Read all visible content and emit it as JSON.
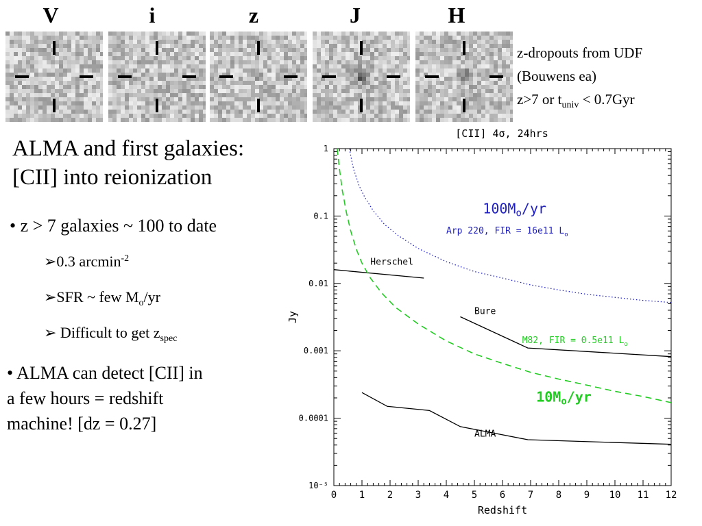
{
  "bands": [
    "V",
    "i",
    "z",
    "J",
    "H"
  ],
  "note": {
    "line1": "z-dropouts from UDF",
    "line2": "(Bouwens ea)",
    "line3_main": "z>7 or t",
    "line3_sub": "univ",
    "line3_tail": " < 0.7Gyr"
  },
  "title": {
    "line1": "ALMA and first galaxies:",
    "line2": "[CII] into reionization"
  },
  "bullets": {
    "b1": "• z > 7 galaxies ~ 100 to date",
    "s1_main": "➢0.3 arcmin",
    "s1_sup": "-2",
    "s2_main": "➢SFR ~ few M",
    "s2_sub": "o",
    "s2_tail": "/yr",
    "s3_main": "➢ Difficult to get z",
    "s3_sub": "spec",
    "p_line1": "• ALMA can detect [CII] in",
    "p_line2": "a few hours =  redshift",
    "p_line3": "machine! [dz = 0.27]"
  },
  "chart_data": {
    "type": "line",
    "title": "[CII] 4σ, 24hrs",
    "xlabel": "Redshift",
    "ylabel": "Jy",
    "xlim": [
      0,
      12
    ],
    "ylim_log10": [
      -5,
      0
    ],
    "x_ticks": [
      "0",
      "1",
      "2",
      "3",
      "4",
      "5",
      "6",
      "7",
      "8",
      "9",
      "10",
      "11",
      "12"
    ],
    "y_ticks": [
      "1",
      "0.1",
      "0.01",
      "0.001",
      "0.0001",
      "10⁻⁵"
    ],
    "series": [
      {
        "name": "Herschel",
        "style": "solid",
        "color": "#000000",
        "x": [
          0,
          3.2
        ],
        "y": [
          0.016,
          0.012
        ]
      },
      {
        "name": "Bure",
        "style": "solid",
        "color": "#000000",
        "x": [
          4.5,
          6.9,
          12
        ],
        "y": [
          0.0032,
          0.0011,
          0.00082
        ]
      },
      {
        "name": "ALMA",
        "style": "solid",
        "color": "#000000",
        "x": [
          1,
          1.9,
          3.4,
          4.5,
          6.9,
          12
        ],
        "y": [
          0.00024,
          0.00015,
          0.00013,
          7.5e-05,
          4.8e-05,
          4.1e-05
        ]
      },
      {
        "name": "Arp 220, FIR = 16e11 Lo",
        "style": "dotted",
        "color": "#2020c0",
        "x": [
          0.55,
          0.7,
          0.9,
          1.1,
          1.4,
          1.8,
          2.3,
          3,
          4,
          5,
          6,
          7,
          8,
          9,
          10,
          11,
          12
        ],
        "y": [
          1,
          0.5,
          0.28,
          0.19,
          0.12,
          0.075,
          0.051,
          0.033,
          0.021,
          0.015,
          0.012,
          0.0095,
          0.008,
          0.0069,
          0.0062,
          0.0056,
          0.0052
        ]
      },
      {
        "name": "M82, FIR = 0.5e11 Lo",
        "style": "dashed",
        "color": "#22cc22",
        "x": [
          0.12,
          0.2,
          0.3,
          0.45,
          0.6,
          0.8,
          1,
          1.3,
          1.7,
          2.2,
          3,
          4,
          5,
          6,
          7,
          8,
          9,
          10,
          11,
          12
        ],
        "y": [
          1,
          0.5,
          0.24,
          0.11,
          0.06,
          0.032,
          0.02,
          0.012,
          0.0072,
          0.0044,
          0.0025,
          0.0014,
          0.0009,
          0.00065,
          0.00048,
          0.00038,
          0.00031,
          0.00025,
          0.00021,
          0.00017
        ]
      }
    ],
    "annotations": [
      {
        "text": "Herschel",
        "color": "#000000"
      },
      {
        "text": "Bure",
        "color": "#000000"
      },
      {
        "text": "ALMA",
        "color": "#000000"
      },
      {
        "text": "Arp 220, FIR = 16e11 L",
        "sub": "o",
        "color": "#2020c0"
      },
      {
        "text": "M82, FIR = 0.5e11 L",
        "sub": "o",
        "color": "#22cc22"
      },
      {
        "text": "100M",
        "sub": "o",
        "tail": "/yr",
        "color": "#2020c0"
      },
      {
        "text": "10M",
        "sub": "o",
        "tail": "/yr",
        "color": "#22cc22"
      }
    ]
  }
}
